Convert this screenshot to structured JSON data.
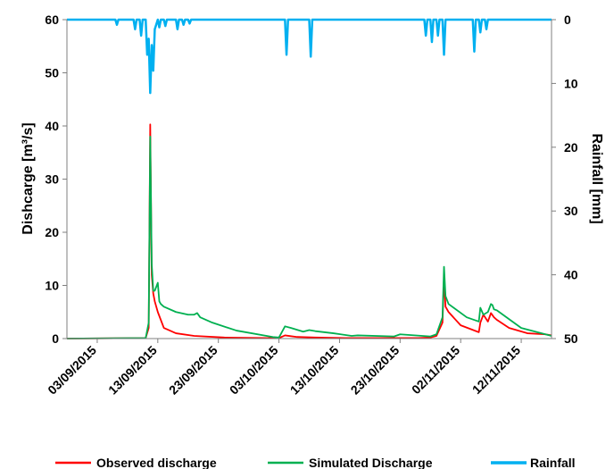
{
  "chart_data": {
    "type": "line",
    "x_tick_labels": [
      "03/09/2015",
      "13/09/2015",
      "23/09/2015",
      "03/10/2015",
      "13/10/2015",
      "23/10/2015",
      "02/11/2015",
      "12/11/2015"
    ],
    "xlim": [
      "2015-08-29",
      "2015-11-17"
    ],
    "ylabel": "Dishcarge [m³/s]",
    "ylim": [
      0,
      60
    ],
    "y_ticks": [
      0,
      10,
      20,
      30,
      40,
      50,
      60
    ],
    "y2label": "Rainfall [mm]",
    "y2lim": [
      0,
      50
    ],
    "y2_inverted": true,
    "y2_ticks": [
      0,
      10,
      20,
      30,
      40,
      50
    ],
    "grid": false,
    "legend_position": "bottom",
    "series": [
      {
        "name": "Observed discharge",
        "axis": "left",
        "color": "#ff0000",
        "x": [
          "2015-08-29",
          "2015-09-11",
          "2015-09-11T12:00",
          "2015-09-11T18:00",
          "2015-09-12",
          "2015-09-12T06:00",
          "2015-09-12T12:00",
          "2015-09-13",
          "2015-09-14",
          "2015-09-16",
          "2015-09-19",
          "2015-09-24",
          "2015-10-01",
          "2015-10-03",
          "2015-10-04",
          "2015-10-06",
          "2015-10-09",
          "2015-10-14",
          "2015-10-19",
          "2015-10-26",
          "2015-10-28",
          "2015-10-29",
          "2015-10-30",
          "2015-10-30T06:00",
          "2015-10-30T12:00",
          "2015-10-31",
          "2015-11-02",
          "2015-11-05",
          "2015-11-05T06:00",
          "2015-11-05T18:00",
          "2015-11-06T12:00",
          "2015-11-07",
          "2015-11-07T12:00",
          "2015-11-08",
          "2015-11-10",
          "2015-11-13",
          "2015-11-16",
          "2015-11-17"
        ],
        "y": [
          0,
          0.1,
          2,
          40.3,
          12,
          8.5,
          7,
          5,
          2,
          1,
          0.5,
          0.2,
          0.1,
          0.1,
          0.6,
          0.3,
          0.2,
          0.1,
          0.1,
          0.1,
          0.2,
          0.5,
          3,
          11.5,
          6,
          5,
          2.5,
          1.2,
          3,
          4.5,
          3.2,
          4.8,
          4,
          3.5,
          2,
          1,
          0.8,
          0.6
        ]
      },
      {
        "name": "Simulated Discharge",
        "axis": "left",
        "color": "#00b050",
        "x": [
          "2015-08-29",
          "2015-09-11",
          "2015-09-11T12:00",
          "2015-09-11T18:00",
          "2015-09-12",
          "2015-09-12T06:00",
          "2015-09-12T12:00",
          "2015-09-13",
          "2015-09-13T06:00",
          "2015-09-13T12:00",
          "2015-09-14",
          "2015-09-16",
          "2015-09-18",
          "2015-09-19",
          "2015-09-19T12:00",
          "2015-09-20",
          "2015-09-22",
          "2015-09-26",
          "2015-10-02",
          "2015-10-03",
          "2015-10-04",
          "2015-10-05",
          "2015-10-07",
          "2015-10-08",
          "2015-10-09",
          "2015-10-12",
          "2015-10-15",
          "2015-10-16",
          "2015-10-22",
          "2015-10-23",
          "2015-10-28",
          "2015-10-29",
          "2015-10-30",
          "2015-10-30T06:00",
          "2015-10-30T12:00",
          "2015-10-31",
          "2015-11-03",
          "2015-11-05",
          "2015-11-05T06:00",
          "2015-11-05T18:00",
          "2015-11-06T12:00",
          "2015-11-07",
          "2015-11-07T06:00",
          "2015-11-07T12:00",
          "2015-11-08",
          "2015-11-12",
          "2015-11-17"
        ],
        "y": [
          0,
          0.1,
          3,
          38,
          14,
          9,
          9,
          10.5,
          7,
          6.5,
          6,
          5,
          4.5,
          4.5,
          4.8,
          4,
          3,
          1.5,
          0.3,
          0.2,
          2.3,
          2,
          1.3,
          1.6,
          1.4,
          1,
          0.5,
          0.6,
          0.4,
          0.8,
          0.4,
          0.8,
          4,
          13.5,
          8,
          6.5,
          4,
          3.2,
          5.8,
          4.5,
          5,
          6.5,
          6.3,
          5.5,
          5.3,
          2,
          0.5
        ]
      },
      {
        "name": "Rainfall",
        "axis": "right",
        "color": "#00b0f0",
        "x": [
          "2015-08-29",
          "2015-09-06",
          "2015-09-06T06:00",
          "2015-09-06T12:00",
          "2015-09-09",
          "2015-09-09T06:00",
          "2015-09-09T12:00",
          "2015-09-10",
          "2015-09-10T06:00",
          "2015-09-10T12:00",
          "2015-09-11",
          "2015-09-11T06:00",
          "2015-09-11T12:00",
          "2015-09-11T18:00",
          "2015-09-12",
          "2015-09-12T06:00",
          "2015-09-12T12:00",
          "2015-09-13",
          "2015-09-13T06:00",
          "2015-09-13T12:00",
          "2015-09-14",
          "2015-09-14T06:00",
          "2015-09-14T12:00",
          "2015-09-16",
          "2015-09-16T06:00",
          "2015-09-16T12:00",
          "2015-09-17",
          "2015-09-17T06:00",
          "2015-09-17T12:00",
          "2015-09-18",
          "2015-09-18T06:00",
          "2015-09-18T12:00",
          "2015-10-04",
          "2015-10-04T06:00",
          "2015-10-04T12:00",
          "2015-10-08",
          "2015-10-08T06:00",
          "2015-10-08T12:00",
          "2015-10-27",
          "2015-10-27T06:00",
          "2015-10-27T12:00",
          "2015-10-28",
          "2015-10-28T06:00",
          "2015-10-28T12:00",
          "2015-10-29",
          "2015-10-29T06:00",
          "2015-10-29T12:00",
          "2015-10-30",
          "2015-10-30T06:00",
          "2015-10-30T12:00",
          "2015-11-04",
          "2015-11-04T06:00",
          "2015-11-04T12:00",
          "2015-11-05",
          "2015-11-05T06:00",
          "2015-11-05T12:00",
          "2015-11-06",
          "2015-11-06T06:00",
          "2015-11-06T12:00",
          "2015-11-17"
        ],
        "y": [
          0,
          0,
          0.8,
          0,
          0,
          1.5,
          0,
          0,
          2.5,
          0,
          0,
          5.5,
          3,
          11.5,
          4,
          8,
          1.5,
          0,
          1.2,
          0,
          0,
          1,
          0,
          0,
          1.5,
          0,
          0,
          0.8,
          0,
          0,
          0.6,
          0,
          0,
          5.5,
          0,
          0,
          5.8,
          0,
          0,
          2.5,
          0,
          0,
          3.5,
          0,
          0,
          2.5,
          0,
          0,
          5.5,
          0,
          0,
          5,
          0,
          0,
          2,
          0,
          0,
          1.5,
          0,
          0
        ]
      }
    ]
  }
}
